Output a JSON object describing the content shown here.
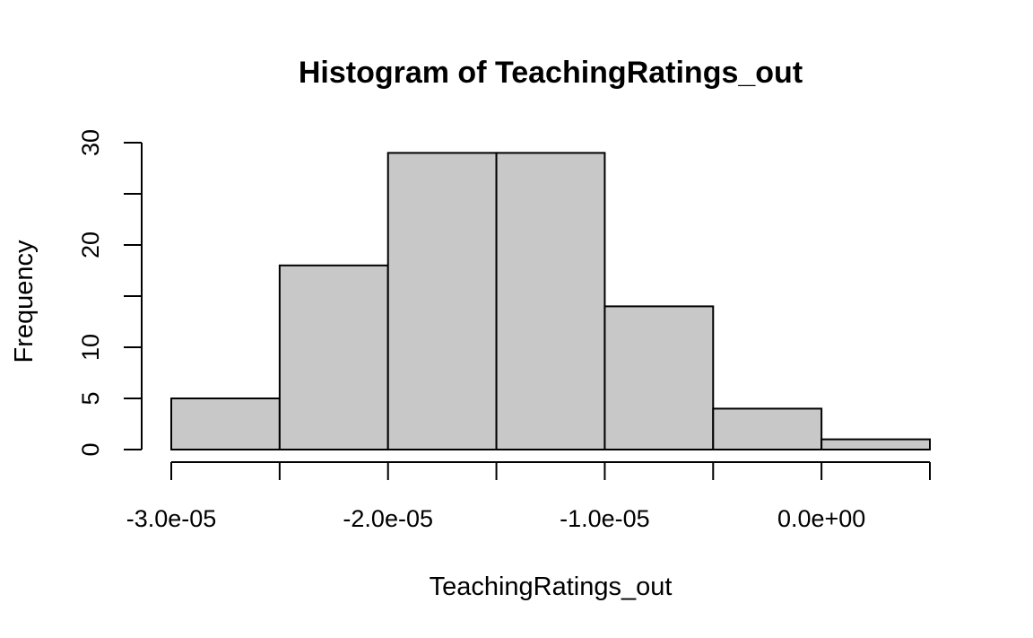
{
  "chart_data": {
    "type": "bar",
    "title": "Histogram of TeachingRatings_out",
    "xlabel": "TeachingRatings_out",
    "ylabel": "Frequency",
    "bins": [
      {
        "start": -3e-05,
        "end": -2.5e-05,
        "count": 5
      },
      {
        "start": -2.5e-05,
        "end": -2e-05,
        "count": 18
      },
      {
        "start": -2e-05,
        "end": -1.5e-05,
        "count": 29
      },
      {
        "start": -1.5e-05,
        "end": -1e-05,
        "count": 29
      },
      {
        "start": -1e-05,
        "end": -5e-06,
        "count": 14
      },
      {
        "start": -5e-06,
        "end": 0.0,
        "count": 4
      },
      {
        "start": 0.0,
        "end": 5e-06,
        "count": 1
      }
    ],
    "xlim": [
      -3e-05,
      5e-06
    ],
    "ylim": [
      0,
      30
    ],
    "x_ticks": [
      -3e-05,
      -2.5e-05,
      -2e-05,
      -1.5e-05,
      -1e-05,
      -5e-06,
      0.0,
      5e-06
    ],
    "x_tick_labels": [
      {
        "value": -3e-05,
        "label": "-3.0e-05"
      },
      {
        "value": -2e-05,
        "label": "-2.0e-05"
      },
      {
        "value": -1e-05,
        "label": "-1.0e-05"
      },
      {
        "value": 0.0,
        "label": "0.0e+00"
      }
    ],
    "y_ticks": [
      0,
      5,
      10,
      15,
      20,
      25,
      30
    ],
    "y_tick_labels": [
      {
        "value": 0,
        "label": "0"
      },
      {
        "value": 5,
        "label": "5"
      },
      {
        "value": 10,
        "label": "10"
      },
      {
        "value": 20,
        "label": "20"
      },
      {
        "value": 30,
        "label": "30"
      }
    ],
    "bar_color": "#c8c8c8",
    "grid": false,
    "legend": "none"
  }
}
